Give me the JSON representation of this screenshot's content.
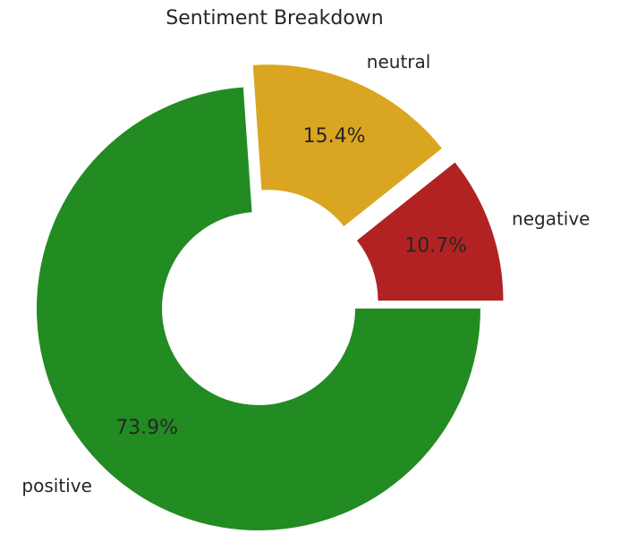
{
  "chart_data": {
    "type": "pie",
    "variant": "donut",
    "title": "Sentiment Breakdown",
    "slices": [
      {
        "label": "negative",
        "value": 10.7,
        "pct_label": "10.7%",
        "color": "#B22222",
        "exploded": true
      },
      {
        "label": "neutral",
        "value": 15.4,
        "pct_label": "15.4%",
        "color": "#DAA520",
        "exploded": true
      },
      {
        "label": "positive",
        "value": 73.9,
        "pct_label": "73.9%",
        "color": "#228B22",
        "exploded": false
      }
    ]
  }
}
